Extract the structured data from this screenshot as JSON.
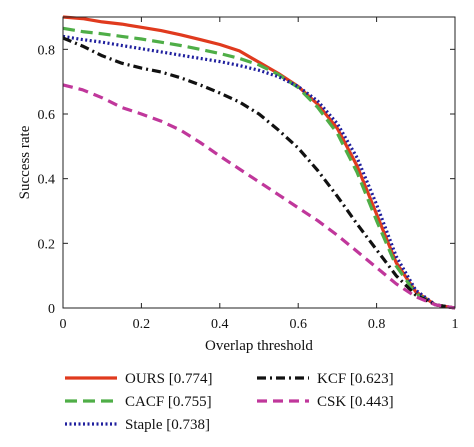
{
  "chart_data": {
    "type": "line",
    "title": "",
    "xlabel": "Overlap threshold",
    "ylabel": "Success rate",
    "xlim": [
      0,
      1
    ],
    "ylim": [
      0,
      0.9
    ],
    "xticks": [
      0,
      0.2,
      0.4,
      0.6,
      0.8,
      1
    ],
    "xtick_labels": [
      "0",
      "0.2",
      "0.4",
      "0.6",
      "0.8",
      "1"
    ],
    "yticks": [
      0,
      0.2,
      0.4,
      0.6,
      0.8
    ],
    "ytick_labels": [
      "0",
      "0.2",
      "0.4",
      "0.6",
      "0.8"
    ],
    "grid": false,
    "legend_position": "below",
    "x": [
      0,
      0.05,
      0.1,
      0.15,
      0.2,
      0.25,
      0.3,
      0.35,
      0.4,
      0.45,
      0.5,
      0.55,
      0.6,
      0.65,
      0.7,
      0.75,
      0.8,
      0.85,
      0.9,
      0.95,
      1
    ],
    "series": [
      {
        "name": "OURS [0.774]",
        "color": "#e03a1e",
        "dash": "solid",
        "values": [
          0.9,
          0.895,
          0.885,
          0.878,
          0.868,
          0.858,
          0.845,
          0.83,
          0.815,
          0.795,
          0.76,
          0.725,
          0.685,
          0.63,
          0.555,
          0.44,
          0.29,
          0.14,
          0.05,
          0.01,
          0.0
        ]
      },
      {
        "name": "CACF [0.755]",
        "color": "#4fae47",
        "dash": "longdash",
        "values": [
          0.865,
          0.855,
          0.848,
          0.84,
          0.832,
          0.822,
          0.812,
          0.8,
          0.787,
          0.772,
          0.752,
          0.722,
          0.682,
          0.62,
          0.54,
          0.42,
          0.27,
          0.13,
          0.045,
          0.01,
          0.0
        ]
      },
      {
        "name": "Staple [0.738]",
        "color": "#1f1f9e",
        "dash": "dotted",
        "values": [
          0.84,
          0.83,
          0.822,
          0.812,
          0.802,
          0.792,
          0.782,
          0.772,
          0.762,
          0.75,
          0.735,
          0.715,
          0.685,
          0.64,
          0.57,
          0.465,
          0.32,
          0.16,
          0.055,
          0.01,
          0.0
        ]
      },
      {
        "name": "KCF [0.623]",
        "color": "#111111",
        "dash": "dashdot",
        "values": [
          0.835,
          0.81,
          0.78,
          0.757,
          0.742,
          0.73,
          0.712,
          0.69,
          0.665,
          0.637,
          0.6,
          0.55,
          0.495,
          0.425,
          0.345,
          0.26,
          0.18,
          0.1,
          0.04,
          0.01,
          0.0
        ]
      },
      {
        "name": "CSK [0.443]",
        "color": "#c0379b",
        "dash": "dashed",
        "values": [
          0.69,
          0.675,
          0.65,
          0.62,
          0.6,
          0.578,
          0.55,
          0.512,
          0.47,
          0.43,
          0.39,
          0.35,
          0.31,
          0.27,
          0.225,
          0.175,
          0.125,
          0.075,
          0.035,
          0.01,
          0.0
        ]
      }
    ]
  }
}
